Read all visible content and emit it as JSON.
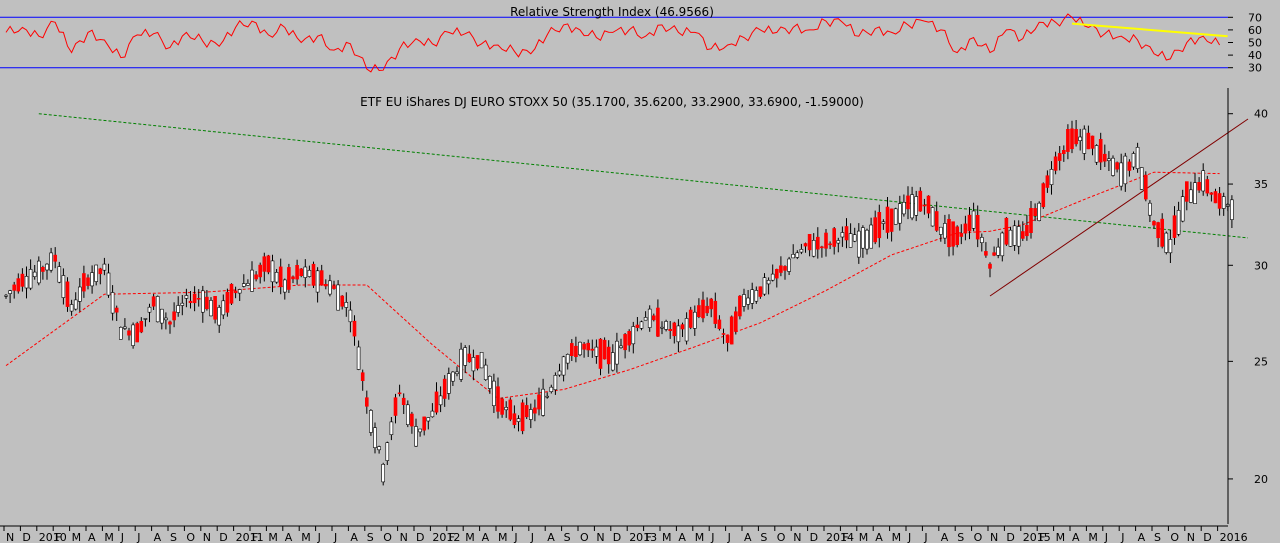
{
  "chart_data": [
    {
      "type": "line",
      "title": "Relative Strength Index (46.9566)",
      "ylim": [
        25,
        75
      ],
      "yticks": [
        30,
        40,
        50,
        60,
        70
      ],
      "reference_lines": [
        30,
        70
      ],
      "series": [
        {
          "color": "#ff0000",
          "x": [
            "2009-10",
            "2009-11",
            "2009-12",
            "2010-01",
            "2010-02",
            "2010-03",
            "2010-04",
            "2010-05",
            "2010-06",
            "2010-07",
            "2010-08",
            "2010-09",
            "2010-10",
            "2010-11",
            "2010-12",
            "2011-01",
            "2011-02",
            "2011-03",
            "2011-04",
            "2011-05",
            "2011-06",
            "2011-07",
            "2011-08",
            "2011-09",
            "2011-10",
            "2011-11",
            "2011-12",
            "2012-01",
            "2012-02",
            "2012-03",
            "2012-04",
            "2012-05",
            "2012-06",
            "2012-07",
            "2012-08",
            "2012-09",
            "2012-10",
            "2012-11",
            "2012-12",
            "2013-01",
            "2013-02",
            "2013-03",
            "2013-04",
            "2013-05",
            "2013-06",
            "2013-07",
            "2013-08",
            "2013-09",
            "2013-10",
            "2013-11",
            "2013-12",
            "2014-01",
            "2014-02",
            "2014-03",
            "2014-04",
            "2014-05",
            "2014-06",
            "2014-07",
            "2014-08",
            "2014-09",
            "2014-10",
            "2014-11",
            "2014-12",
            "2015-01",
            "2015-02",
            "2015-03",
            "2015-04",
            "2015-05",
            "2015-06",
            "2015-07",
            "2015-08",
            "2015-09",
            "2015-10",
            "2015-11",
            "2015-12"
          ],
          "values": [
            58,
            62,
            55,
            66,
            42,
            58,
            52,
            38,
            56,
            57,
            46,
            58,
            51,
            47,
            62,
            67,
            56,
            62,
            50,
            55,
            44,
            49,
            29,
            28,
            45,
            53,
            49,
            58,
            57,
            49,
            48,
            43,
            41,
            56,
            64,
            60,
            54,
            58,
            60,
            55,
            64,
            58,
            58,
            45,
            48,
            54,
            60,
            58,
            62,
            60,
            67,
            66,
            55,
            61,
            58,
            64,
            67,
            60,
            42,
            54,
            42,
            60,
            53,
            66,
            66,
            70,
            62,
            57,
            55,
            52,
            41,
            37,
            50,
            55,
            48
          ]
        }
      ],
      "annotation": {
        "color": "#ffff00",
        "x": [
          "2015-03",
          "2015-12"
        ],
        "values": [
          65,
          55
        ]
      }
    },
    {
      "type": "candlestick",
      "title": "ETF EU iShares DJ EURO STOXX 50 (35.1700, 35.6200, 33.2900, 33.6900, -1.59000)",
      "y_scale": "log",
      "ylim": [
        18.5,
        42
      ],
      "yticks": [
        20,
        25,
        30,
        35,
        40
      ],
      "xtick_labels": [
        "N",
        "D",
        "2010",
        "F",
        "M",
        "A",
        "M",
        "J",
        "J",
        "A",
        "S",
        "O",
        "N",
        "D",
        "2011",
        "F",
        "M",
        "A",
        "M",
        "J",
        "J",
        "A",
        "S",
        "O",
        "N",
        "D",
        "2012",
        "F",
        "M",
        "A",
        "M",
        "J",
        "J",
        "A",
        "S",
        "O",
        "N",
        "D",
        "2013",
        "F",
        "M",
        "A",
        "M",
        "J",
        "J",
        "A",
        "S",
        "O",
        "N",
        "D",
        "2014",
        "F",
        "M",
        "A",
        "M",
        "J",
        "J",
        "A",
        "S",
        "O",
        "N",
        "D",
        "2015",
        "F",
        "M",
        "A",
        "M",
        "J",
        "J",
        "A",
        "S",
        "O",
        "N",
        "D",
        "2016"
      ],
      "price": {
        "x": [
          "2009-10",
          "2009-11",
          "2009-12",
          "2010-01",
          "2010-02",
          "2010-03",
          "2010-04",
          "2010-05",
          "2010-06",
          "2010-07",
          "2010-08",
          "2010-09",
          "2010-10",
          "2010-11",
          "2010-12",
          "2011-01",
          "2011-02",
          "2011-03",
          "2011-04",
          "2011-05",
          "2011-06",
          "2011-07",
          "2011-08",
          "2011-09",
          "2011-10",
          "2011-11",
          "2011-12",
          "2012-01",
          "2012-02",
          "2012-03",
          "2012-04",
          "2012-05",
          "2012-06",
          "2012-07",
          "2012-08",
          "2012-09",
          "2012-10",
          "2012-11",
          "2012-12",
          "2013-01",
          "2013-02",
          "2013-03",
          "2013-04",
          "2013-05",
          "2013-06",
          "2013-07",
          "2013-08",
          "2013-09",
          "2013-10",
          "2013-11",
          "2013-12",
          "2014-01",
          "2014-02",
          "2014-03",
          "2014-04",
          "2014-05",
          "2014-06",
          "2014-07",
          "2014-08",
          "2014-09",
          "2014-10",
          "2014-11",
          "2014-12",
          "2015-01",
          "2015-02",
          "2015-03",
          "2015-04",
          "2015-05",
          "2015-06",
          "2015-07",
          "2015-08",
          "2015-09",
          "2015-10",
          "2015-11",
          "2015-12"
        ],
        "close": [
          28.3,
          29.2,
          29.6,
          30.4,
          27.6,
          29.2,
          29.8,
          26.6,
          26.4,
          27.9,
          26.9,
          28.1,
          28.2,
          27.3,
          28.6,
          29.2,
          30.0,
          28.9,
          29.6,
          29.3,
          28.7,
          27.5,
          23.2,
          20.4,
          23.6,
          21.8,
          22.6,
          24.0,
          25.2,
          25.0,
          23.2,
          22.4,
          22.6,
          23.4,
          25.0,
          25.7,
          25.4,
          25.2,
          26.2,
          27.2,
          26.8,
          26.3,
          27.2,
          27.8,
          25.9,
          28.1,
          28.6,
          29.4,
          30.4,
          31.2,
          31.2,
          31.7,
          31.4,
          32.1,
          32.7,
          33.6,
          33.8,
          32.2,
          31.5,
          32.9,
          30.1,
          31.9,
          31.6,
          33.5,
          36.5,
          38.2,
          38.0,
          36.7,
          35.8,
          36.8,
          32.4,
          31.3,
          34.2,
          35.2,
          33.7
        ]
      },
      "moving_average": {
        "color": "#ff0000",
        "x": [
          "2009-10",
          "2010-04",
          "2010-10",
          "2011-04",
          "2011-08",
          "2011-12",
          "2012-04",
          "2012-08",
          "2012-12",
          "2013-04",
          "2013-08",
          "2013-12",
          "2014-04",
          "2014-08",
          "2014-10",
          "2014-12",
          "2015-04",
          "2015-08",
          "2015-12"
        ],
        "values": [
          24.8,
          28.4,
          28.5,
          28.9,
          28.9,
          25.8,
          23.3,
          23.7,
          24.6,
          25.7,
          26.9,
          28.6,
          30.6,
          31.9,
          32.0,
          32.4,
          34.1,
          35.8,
          35.7
        ]
      },
      "trendlines": [
        {
          "color": "#008000",
          "x": [
            "2009-12",
            "2016-01"
          ],
          "values": [
            40.0,
            31.6
          ]
        },
        {
          "color": "#800000",
          "x": [
            "2014-10",
            "2016-01"
          ],
          "values": [
            28.3,
            39.6
          ]
        }
      ]
    }
  ]
}
